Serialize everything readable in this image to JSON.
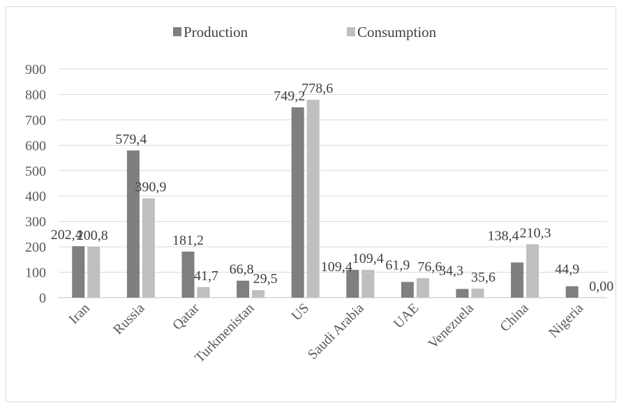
{
  "chart_data": {
    "type": "bar",
    "categories": [
      "Iran",
      "Russia",
      "Qatar",
      "Turkmenistan",
      "US",
      "Saudi Arabia",
      "UAE",
      "Venezuela",
      "China",
      "Nigeria"
    ],
    "series": [
      {
        "name": "Production",
        "color": "#7f7f7f",
        "values": [
          202.4,
          579.4,
          181.2,
          66.8,
          749.2,
          109.4,
          61.9,
          34.3,
          138.4,
          44.9
        ],
        "labels": [
          "202,4",
          "579,4",
          "181,2",
          "66,8",
          "749,2",
          "109,4",
          "61,9",
          "34,3",
          "138,4",
          "44,9"
        ]
      },
      {
        "name": "Consumption",
        "color": "#bfbfbf",
        "values": [
          200.8,
          390.9,
          41.7,
          29.5,
          778.6,
          109.4,
          76.6,
          35.6,
          210.3,
          0
        ],
        "labels": [
          "200,8",
          "390,9",
          "41,7",
          "29,5",
          "778,6",
          "109,4",
          "76,6",
          "35,6",
          "210,3",
          "0,00"
        ]
      }
    ],
    "yticks": [
      "0",
      "100",
      "200",
      "300",
      "400",
      "500",
      "600",
      "700",
      "800",
      "900"
    ],
    "ylim": [
      0,
      900
    ],
    "grid": true,
    "legend": "top-center",
    "title": "",
    "xlabel": "",
    "ylabel": ""
  }
}
